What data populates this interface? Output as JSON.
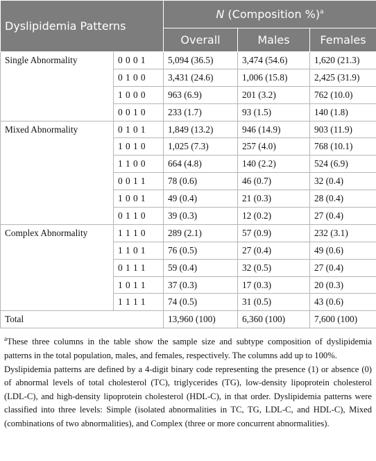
{
  "header": {
    "pattern_label": "Dyslipidemia Patterns",
    "group_title": {
      "n": "N",
      "text": " (Composition %)",
      "sup": "a"
    },
    "columns": [
      "Overall",
      "Males",
      "Females"
    ]
  },
  "groups": [
    {
      "label": "Single Abnormality",
      "rows": [
        [
          "0 0 0 1",
          "5,094 (36.5)",
          "3,474 (54.6)",
          "1,620 (21.3)"
        ],
        [
          "0 1 0 0",
          "3,431 (24.6)",
          "1,006 (15.8)",
          "2,425 (31.9)"
        ],
        [
          "1 0 0 0",
          "963 (6.9)",
          "201 (3.2)",
          "762 (10.0)"
        ],
        [
          "0 0 1 0",
          "233 (1.7)",
          "93 (1.5)",
          "140 (1.8)"
        ]
      ]
    },
    {
      "label": "Mixed Abnormality",
      "rows": [
        [
          "0 1 0 1",
          "1,849 (13.2)",
          "946 (14.9)",
          "903 (11.9)"
        ],
        [
          "1 0 1 0",
          "1,025 (7.3)",
          "257 (4.0)",
          "768 (10.1)"
        ],
        [
          "1 1 0 0",
          "664 (4.8)",
          "140 (2.2)",
          "524 (6.9)"
        ],
        [
          "0 0 1 1",
          "78 (0.6)",
          "46 (0.7)",
          "32 (0.4)"
        ],
        [
          "1 0 0 1",
          "49 (0.4)",
          "21 (0.3)",
          "28 (0.4)"
        ],
        [
          "0 1 1 0",
          "39 (0.3)",
          "12 (0.2)",
          "27 (0.4)"
        ]
      ]
    },
    {
      "label": "Complex Abnormality",
      "rows": [
        [
          "1 1 1 0",
          "289 (2.1)",
          "57 (0.9)",
          "232 (3.1)"
        ],
        [
          "1 1 0 1",
          "76 (0.5)",
          "27 (0.4)",
          "49 (0.6)"
        ],
        [
          "0 1 1 1",
          "59 (0.4)",
          "32 (0.5)",
          "27 (0.4)"
        ],
        [
          "1 0 1 1",
          "37 (0.3)",
          "17 (0.3)",
          "20 (0.3)"
        ],
        [
          "1 1 1 1",
          "74 (0.5)",
          "31 (0.5)",
          "43 (0.6)"
        ]
      ]
    }
  ],
  "total": {
    "label": "Total",
    "values": [
      "13,960 (100)",
      "6,360 (100)",
      "7,600 (100)"
    ]
  },
  "footnotes": [
    {
      "sup": "a",
      "text": "These three columns in the table show the sample size and subtype composition of dyslipidemia patterns in the total population, males, and females, respectively. The columns add up to 100%."
    },
    {
      "text": "Dyslipidemia patterns are defined by a 4-digit binary code representing the presence (1) or absence (0) of abnormal levels of total cholesterol (TC), triglycerides (TG), low-density lipoprotein cholesterol (LDL-C), and high-density lipoprotein cholesterol (HDL-C), in that order. Dyslipidemia patterns were classified into three levels: Simple (isolated abnormalities in TC, TG, LDL-C, and HDL-C), Mixed (combinations of two abnormalities), and Complex (three or more concurrent abnormalities)."
    }
  ]
}
